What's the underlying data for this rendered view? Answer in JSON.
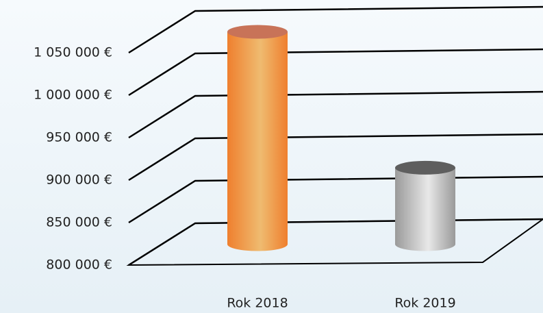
{
  "chart_data": {
    "type": "bar3d",
    "categories": [
      "Rok 2018",
      "Rok 2019"
    ],
    "values": [
      1050000,
      890000
    ],
    "colors": [
      "#f08a3c",
      "#b4b4b4"
    ],
    "ylim": [
      800000,
      1050000
    ],
    "yticks": [
      {
        "value": 800000,
        "label": "800 000 €"
      },
      {
        "value": 850000,
        "label": "850 000 €"
      },
      {
        "value": 900000,
        "label": "900 000 €"
      },
      {
        "value": 950000,
        "label": "950 000 €"
      },
      {
        "value": 1000000,
        "label": "1 000 000 €"
      },
      {
        "value": 1050000,
        "label": "1 050 000 €"
      }
    ],
    "grid": true
  }
}
